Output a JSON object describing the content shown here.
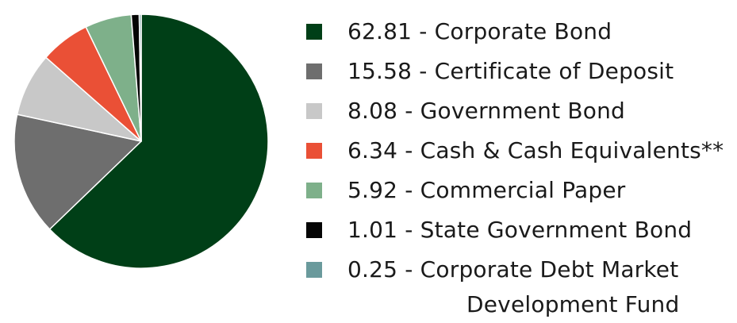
{
  "chart_data": {
    "type": "pie",
    "title": "",
    "legend_placement": "right",
    "slices": [
      {
        "label": "62.81 - Corporate Bond",
        "value": 62.81,
        "color": "#003f17"
      },
      {
        "label": "15.58 - Certificate of Deposit",
        "value": 15.58,
        "color": "#6e6e6e"
      },
      {
        "label": "8.08 - Government Bond",
        "value": 8.08,
        "color": "#c8c8c8"
      },
      {
        "label": "6.34 - Cash & Cash Equivalents**",
        "value": 6.34,
        "color": "#ea5036"
      },
      {
        "label": "5.92 - Commercial Paper",
        "value": 5.92,
        "color": "#7eb08a"
      },
      {
        "label": "1.01 - State Government Bond",
        "value": 1.01,
        "color": "#050505"
      },
      {
        "label_line1": "0.25 - Corporate Debt Market",
        "label_line2": "Development Fund",
        "value": 0.25,
        "color": "#6a9a9c"
      }
    ]
  }
}
